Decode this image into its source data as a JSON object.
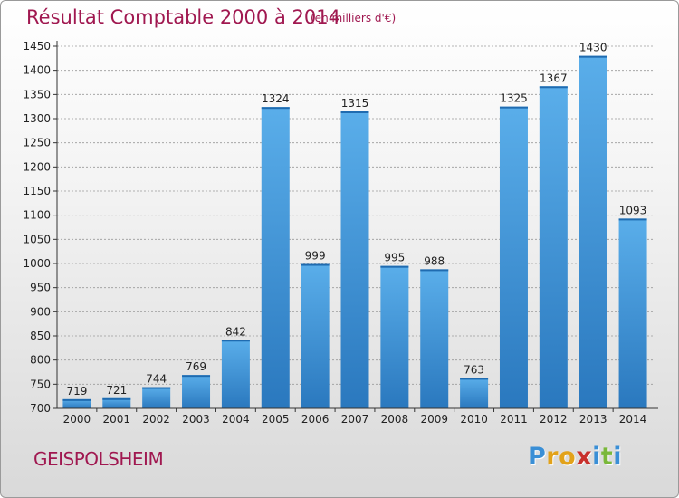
{
  "header": {
    "title": "Résultat Comptable 2000 à 2014",
    "subtitle": "(en milliers d'€)"
  },
  "footer": {
    "commune": "GEISPOLSHEIM",
    "logo_letters": [
      "P",
      "r",
      "o",
      "x",
      "i",
      "t",
      "i"
    ],
    "logo_colors": [
      "#3a8fd6",
      "#e2a21a",
      "#e2a21a",
      "#c8302c",
      "#3a8fd6",
      "#7ab83a",
      "#3a8fd6"
    ]
  },
  "colors": {
    "bar_top": "#5aaeea",
    "bar_bottom": "#2a78be",
    "grid": "#9a9a9a",
    "axis": "#333333",
    "text": "#222222",
    "title": "#a01850"
  },
  "chart_data": {
    "type": "bar",
    "title": "Résultat Comptable 2000 à 2014",
    "subtitle": "(en milliers d'€)",
    "categories": [
      "2000",
      "2001",
      "2002",
      "2003",
      "2004",
      "2005",
      "2006",
      "2007",
      "2008",
      "2009",
      "2010",
      "2011",
      "2012",
      "2013",
      "2014"
    ],
    "values": [
      719,
      721,
      744,
      769,
      842,
      1324,
      999,
      1315,
      995,
      988,
      763,
      1325,
      1367,
      1430,
      1093
    ],
    "ylim": [
      700,
      1450
    ],
    "yticks": [
      700,
      750,
      800,
      850,
      900,
      950,
      1000,
      1050,
      1100,
      1150,
      1200,
      1250,
      1300,
      1350,
      1400,
      1450
    ],
    "grid": true,
    "xlabel": "",
    "ylabel": ""
  }
}
